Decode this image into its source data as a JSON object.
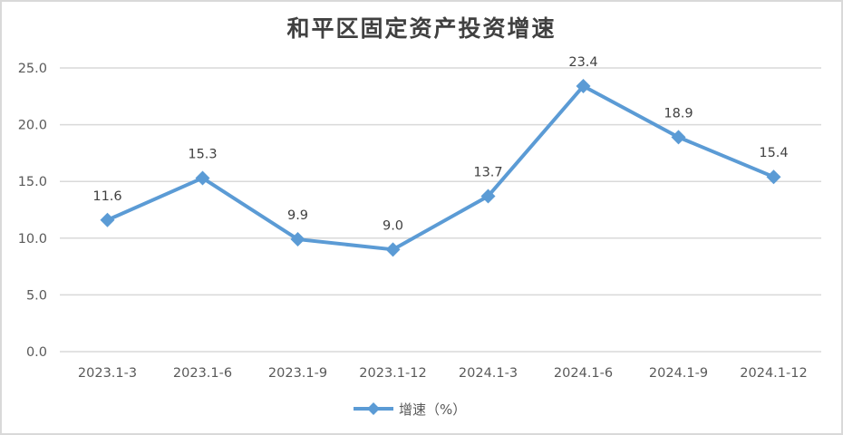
{
  "chart": {
    "title": "和平区固定资产投资增速",
    "legend_label": "增速（%）",
    "line_color": "#5b9bd5",
    "grid_color": "#d9d9d9",
    "yticks": [
      "25.0",
      "20.0",
      "15.0",
      "10.0",
      "5.0",
      "0.0"
    ],
    "points": [
      {
        "label": "2023.1-3",
        "value": "11.6"
      },
      {
        "label": "2023.1-6",
        "value": "15.3"
      },
      {
        "label": "2023.1-9",
        "value": "9.9"
      },
      {
        "label": "2023.1-12",
        "value": "9.0"
      },
      {
        "label": "2024.1-3",
        "value": "13.7"
      },
      {
        "label": "2024.1-6",
        "value": "23.4"
      },
      {
        "label": "2024.1-9",
        "value": "18.9"
      },
      {
        "label": "2024.1-12",
        "value": "15.4"
      }
    ]
  },
  "chart_data": {
    "type": "line",
    "title": "和平区固定资产投资增速",
    "categories": [
      "2023.1-3",
      "2023.1-6",
      "2023.1-9",
      "2023.1-12",
      "2024.1-3",
      "2024.1-6",
      "2024.1-9",
      "2024.1-12"
    ],
    "series": [
      {
        "name": "增速（%）",
        "values": [
          11.6,
          15.3,
          9.9,
          9.0,
          13.7,
          23.4,
          18.9,
          15.4
        ],
        "color": "#5b9bd5",
        "marker": "diamond"
      }
    ],
    "xlabel": "",
    "ylabel": "",
    "ylim": [
      0,
      25
    ],
    "yticks": [
      0,
      5,
      10,
      15,
      20,
      25
    ],
    "grid": true,
    "legend_position": "bottom",
    "data_labels": true
  }
}
